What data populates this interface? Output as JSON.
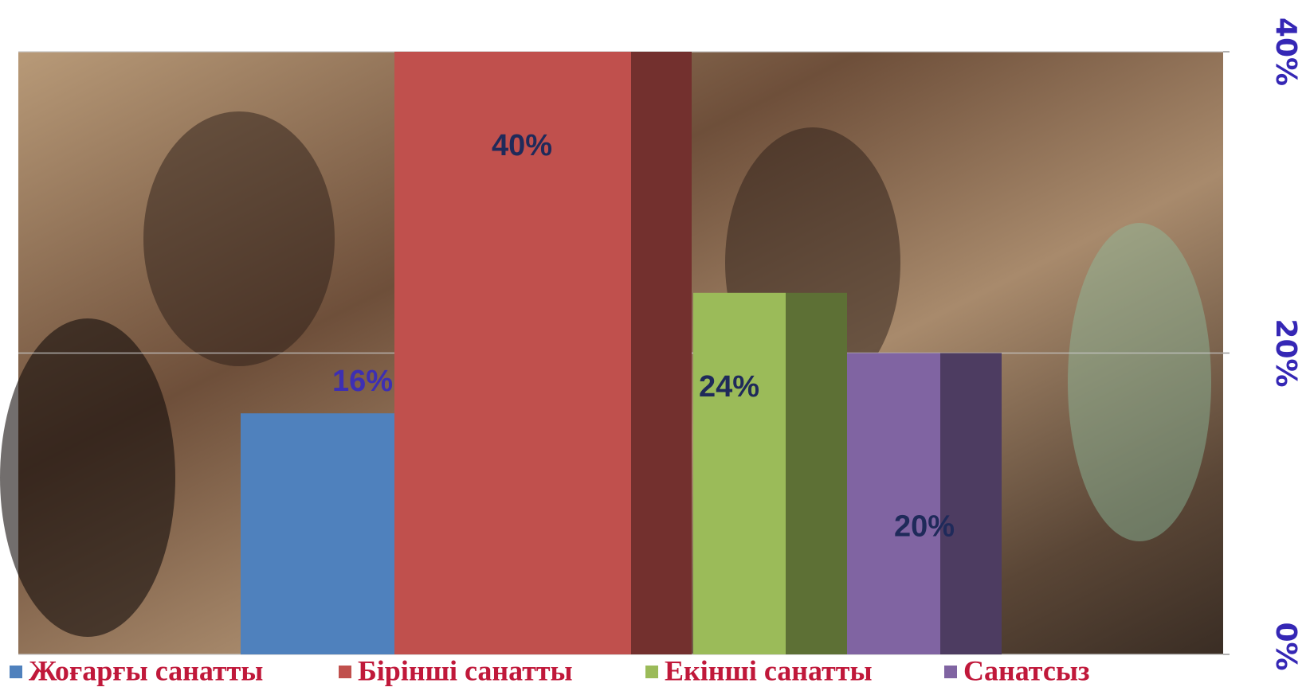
{
  "chart_data": {
    "type": "bar3d",
    "series": [
      {
        "name": "Жоғарғы санатты",
        "color": "#4f81bd",
        "values": [
          16
        ],
        "value_labels": [
          "16%"
        ]
      },
      {
        "name": "Бірінші санатты",
        "color": "#c0504d",
        "values": [
          40
        ],
        "value_labels": [
          "40%"
        ]
      },
      {
        "name": "Екінші санатты",
        "color": "#9bbb59",
        "values": [
          24
        ],
        "value_labels": [
          "24%"
        ]
      },
      {
        "name": "Санатсыз",
        "color": "#8064a2",
        "values": [
          20
        ],
        "value_labels": [
          "20%"
        ]
      }
    ],
    "ylim": [
      0,
      40
    ],
    "yticks": [
      {
        "value": 0,
        "label": "0%"
      },
      {
        "value": 20,
        "label": "20%"
      },
      {
        "value": 40,
        "label": "40%"
      }
    ],
    "grid": true,
    "legend": "bottom"
  }
}
